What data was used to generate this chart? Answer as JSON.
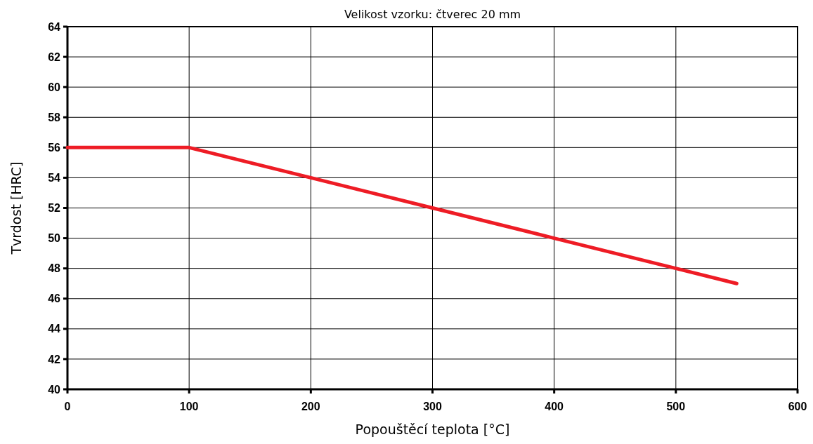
{
  "chart_data": {
    "type": "line",
    "title": "Velikost vzorku: čtverec 20 mm",
    "xlabel": "Popouštěcí teplota [°C]",
    "ylabel": "Tvrdost [HRC]",
    "x": [
      0,
      100,
      200,
      300,
      400,
      500,
      550
    ],
    "series": [
      {
        "color": "#ee1c25",
        "values": [
          56,
          56,
          54,
          52,
          50,
          48,
          47
        ]
      }
    ],
    "xlim": [
      0,
      600
    ],
    "xticks": [
      0,
      100,
      200,
      300,
      400,
      500,
      600
    ],
    "ylim": [
      40,
      64
    ],
    "yticks": [
      40,
      42,
      44,
      46,
      48,
      50,
      52,
      54,
      56,
      58,
      60,
      62,
      64
    ],
    "grid": true,
    "marker": "none",
    "line_style": "solid"
  }
}
